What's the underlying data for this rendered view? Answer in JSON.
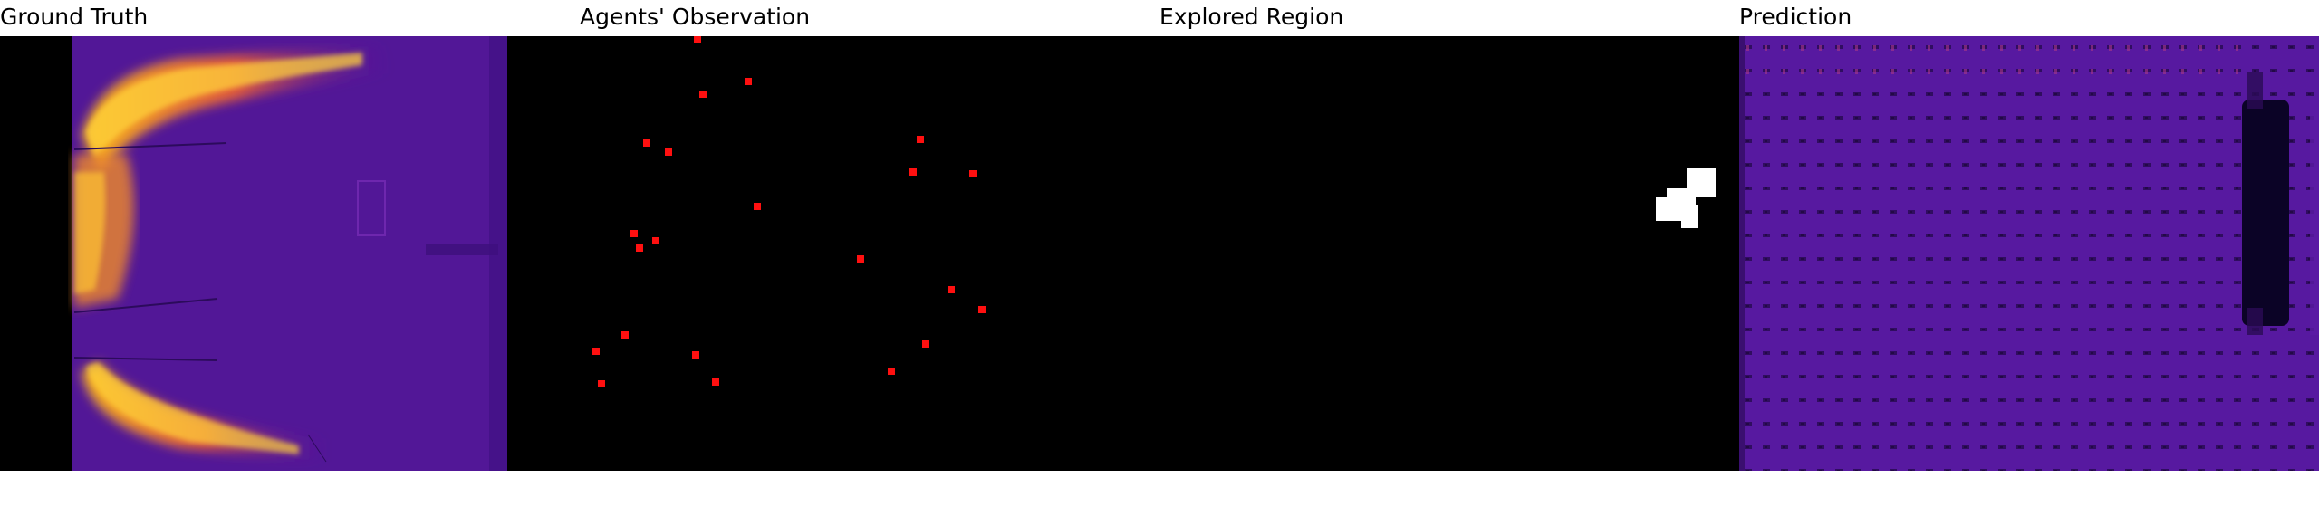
{
  "panels": [
    {
      "title": "Ground Truth"
    },
    {
      "title": "Agents' Observation"
    },
    {
      "title": "Explored Region"
    },
    {
      "title": "Prediction"
    }
  ],
  "colors": {
    "background": "#000000",
    "marker": "#ff1010",
    "explored": "#ffffff",
    "heat_low": "#3a0a7a",
    "heat_mid": "#6a1fa8",
    "heat_high": "#f7c61f"
  }
}
